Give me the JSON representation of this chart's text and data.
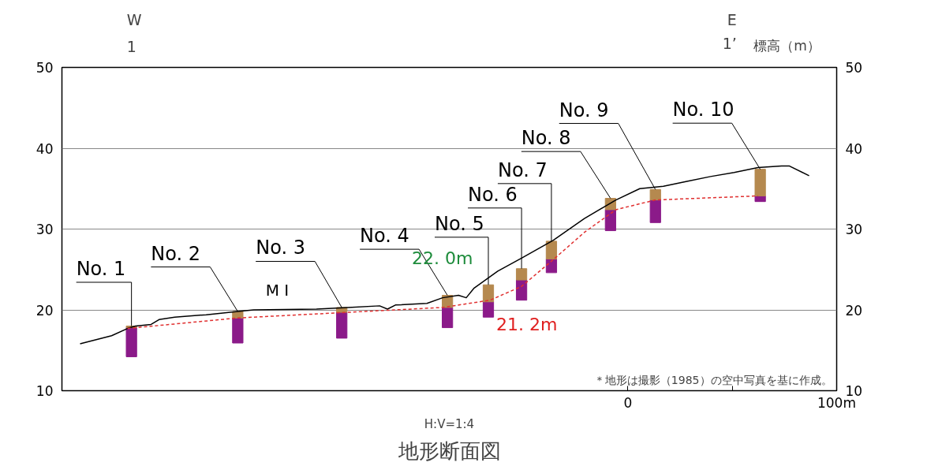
{
  "chart_data": {
    "type": "line",
    "title": "地形断面図",
    "xlabel": "H:V=1:4",
    "y2label": "標高（m）",
    "xlim": [
      -271,
      100
    ],
    "xticks": [
      0,
      {
        "value": 50,
        "label": null
      },
      {
        "value": 100,
        "label": "100m"
      }
    ],
    "ylim": [
      10,
      50
    ],
    "yticks": [
      10,
      20,
      30,
      40,
      50
    ],
    "y2lim": [
      10,
      50
    ],
    "y2ticks": [
      10,
      20,
      30,
      40,
      50
    ],
    "grid": "y",
    "series": [
      {
        "type": "bar",
        "color": "#8b1a89",
        "x": [
          -237.7,
          -186.8,
          -137.0,
          -86.4,
          -66.8,
          -50.9,
          -36.6,
          -8.3,
          13.2,
          63.4
        ],
        "base": [
          14.2,
          15.9,
          16.5,
          17.8,
          19.1,
          21.2,
          24.6,
          29.8,
          30.8,
          33.4
        ],
        "values": [
          3.6,
          3.1,
          3.2,
          2.5,
          1.9,
          2.5,
          1.7,
          2.6,
          2.8,
          0.7
        ]
      },
      {
        "type": "bar",
        "color": "#b5894f",
        "x": [
          -237.7,
          -186.8,
          -137.0,
          -86.4,
          -66.8,
          -50.9,
          -36.6,
          -8.3,
          13.2,
          63.4
        ],
        "base": [
          17.8,
          19.0,
          19.7,
          20.3,
          21.0,
          23.7,
          26.3,
          32.4,
          33.6,
          34.1
        ],
        "values": [
          0.2,
          0.8,
          0.6,
          1.5,
          2.1,
          1.4,
          2.2,
          1.4,
          1.3,
          3.3
        ]
      },
      {
        "color": "#000000",
        "x": [
          -262.3,
          -247.2,
          -239.6,
          -235.8,
          -228.3,
          -224.5,
          -217.0,
          -201.9,
          -186.8,
          -179.2,
          -149.1,
          -134.0,
          -118.9,
          -115.1,
          -111.3,
          -96.2,
          -88.7,
          -81.1,
          -77.4,
          -73.6,
          -62.3,
          -50.9,
          -35.8,
          -20.8,
          -5.7,
          5.7,
          17.0,
          28.3,
          39.6,
          50.9,
          62.3,
          73.6,
          77.4,
          86.8
        ],
        "values": [
          15.8,
          16.8,
          17.7,
          18.0,
          18.2,
          18.8,
          19.1,
          19.4,
          19.8,
          20.0,
          20.1,
          20.3,
          20.5,
          20.1,
          20.6,
          20.8,
          21.5,
          21.8,
          21.5,
          22.7,
          24.8,
          26.4,
          28.6,
          31.3,
          33.6,
          35.0,
          35.3,
          35.9,
          36.5,
          37.0,
          37.6,
          37.8,
          37.8,
          36.6
        ],
        "line_style": "solid"
      },
      {
        "color": "#e03030",
        "x": [
          -239.6,
          -186.8,
          -134.0,
          -88.7,
          -66.0,
          -50.9,
          -35.8,
          -20.8,
          -5.7,
          13.2,
          62.3
        ],
        "values": [
          17.7,
          19.0,
          19.7,
          20.3,
          21.2,
          22.9,
          26.2,
          29.6,
          32.4,
          33.6,
          34.1
        ],
        "line_style": "dashed"
      }
    ],
    "annotations": [
      {
        "text": "No. 1",
        "x": -237.7,
        "y": 18.0
      },
      {
        "text": "No. 2",
        "x": -186.8,
        "y": 19.8
      },
      {
        "text": "No. 3",
        "x": -137.0,
        "y": 20.3
      },
      {
        "text": "No. 4",
        "x": -86.4,
        "y": 21.8
      },
      {
        "text": "No. 5",
        "x": -66.8,
        "y": 23.1
      },
      {
        "text": "No. 6",
        "x": -50.9,
        "y": 25.1
      },
      {
        "text": "No. 7",
        "x": -36.6,
        "y": 28.5
      },
      {
        "text": "No. 8",
        "x": -8.3,
        "y": 33.8
      },
      {
        "text": "No. 9",
        "x": 13.2,
        "y": 34.9
      },
      {
        "text": "No. 10",
        "x": 63.4,
        "y": 37.4
      },
      {
        "text": "22. 0m",
        "x": -80.0,
        "y": 22.0
      },
      {
        "text": "21. 2m",
        "x": -66.0,
        "y": 21.2
      },
      {
        "text": "M I",
        "x": -167.9,
        "y": 20.0
      },
      "＊地形は撮影（1985）の空中写真を基に作成。",
      "W",
      "1",
      "E",
      "1’"
    ]
  }
}
